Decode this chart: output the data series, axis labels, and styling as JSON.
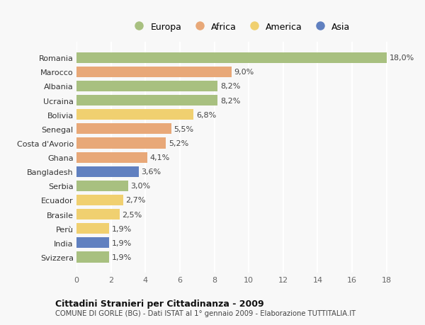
{
  "countries": [
    "Romania",
    "Marocco",
    "Albania",
    "Ucraina",
    "Bolivia",
    "Senegal",
    "Costa d'Avorio",
    "Ghana",
    "Bangladesh",
    "Serbia",
    "Ecuador",
    "Brasile",
    "Perù",
    "India",
    "Svizzera"
  ],
  "values": [
    18.0,
    9.0,
    8.2,
    8.2,
    6.8,
    5.5,
    5.2,
    4.1,
    3.6,
    3.0,
    2.7,
    2.5,
    1.9,
    1.9,
    1.9
  ],
  "continents": [
    "Europa",
    "Africa",
    "Europa",
    "Europa",
    "America",
    "Africa",
    "Africa",
    "Africa",
    "Asia",
    "Europa",
    "America",
    "America",
    "America",
    "Asia",
    "Europa"
  ],
  "colors": {
    "Europa": "#a8c080",
    "Africa": "#e8a878",
    "America": "#f0d070",
    "Asia": "#6080c0"
  },
  "xlim": [
    0,
    19
  ],
  "xticks": [
    0,
    2,
    4,
    6,
    8,
    10,
    12,
    14,
    16,
    18
  ],
  "title": "Cittadini Stranieri per Cittadinanza - 2009",
  "subtitle": "COMUNE DI GORLE (BG) - Dati ISTAT al 1° gennaio 2009 - Elaborazione TUTTITALIA.IT",
  "bg_color": "#f8f8f8",
  "bar_height": 0.75,
  "label_fontsize": 8.0,
  "value_fontsize": 8.0,
  "legend_order": [
    "Europa",
    "Africa",
    "America",
    "Asia"
  ]
}
